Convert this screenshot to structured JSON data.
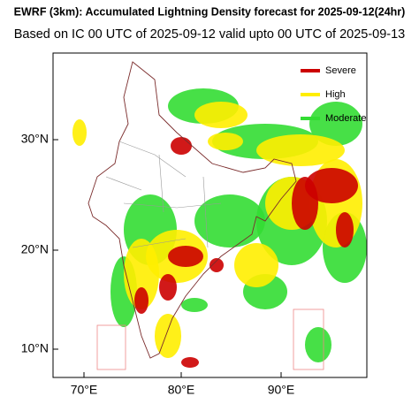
{
  "header": {
    "title": "EWRF (3km): Accumulated Lightning Density forecast for 2025-09-12(24hr)",
    "subtitle": "Based on IC 00 UTC of 2025-09-12 valid upto 00 UTC of 2025-09-13"
  },
  "legend": {
    "items": [
      {
        "label": "Severe",
        "color": "#cc0000"
      },
      {
        "label": "High",
        "color": "#ffee00"
      },
      {
        "label": "Moderate",
        "color": "#33dd33"
      }
    ]
  },
  "map": {
    "x_labels": [
      "70°E",
      "80°E",
      "90°E"
    ],
    "y_labels": [
      "30°N",
      "20°N",
      "10°N"
    ]
  }
}
